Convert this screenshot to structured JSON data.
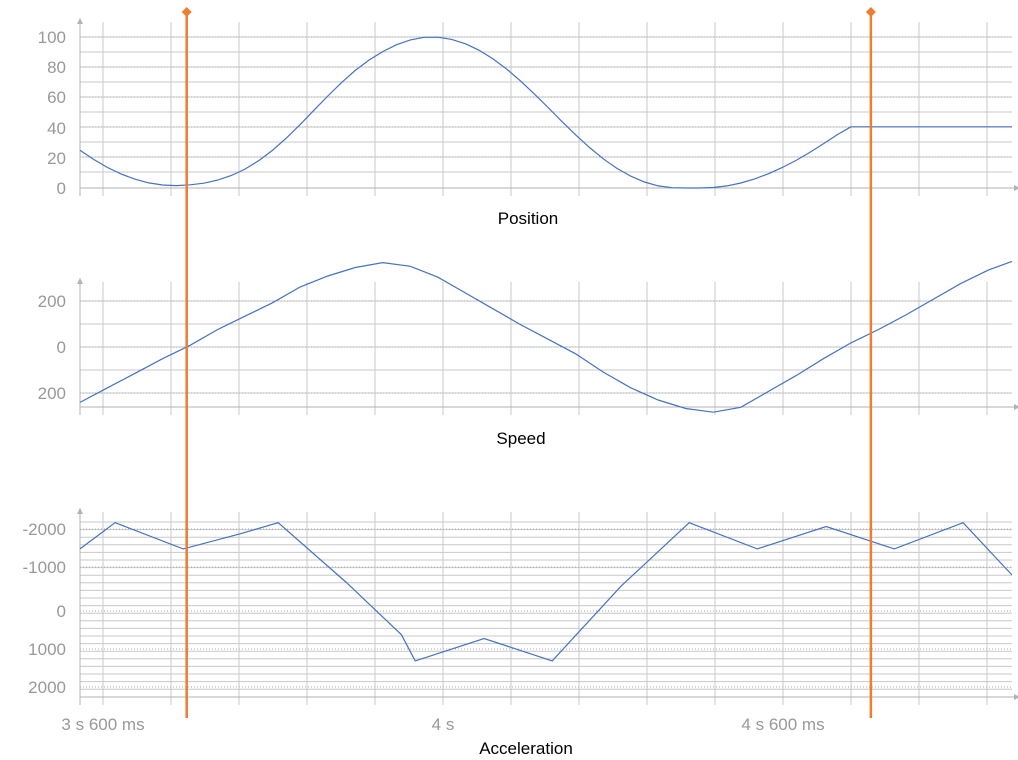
{
  "colors": {
    "series": "#4472c4",
    "cursor": "#ed7d31",
    "grid": "#c8c8c8",
    "axis": "#b3b3b3",
    "tick_text": "#999999",
    "title_text": "#000000"
  },
  "x_axis": {
    "type": "time",
    "unit": "ms",
    "range": [
      3522,
      4876
    ],
    "tick_labels": [
      {
        "t": 3600,
        "label": "3 s 600 ms"
      },
      {
        "t": 4000,
        "label": "4 s"
      },
      {
        "t": 4400,
        "label": "4 s 600 ms"
      }
    ]
  },
  "cursors": [
    {
      "t": 3677
    },
    {
      "t": 4671
    }
  ],
  "chart_data": [
    {
      "type": "line",
      "title": "Position",
      "ylim": [
        0,
        100
      ],
      "y_ticks": [
        "0",
        "20",
        "40",
        "60",
        "80",
        "100"
      ],
      "grid": true,
      "series": [
        {
          "x": [
            3522,
            3542,
            3562,
            3582,
            3602,
            3622,
            3642,
            3662,
            3682,
            3702,
            3722,
            3742,
            3762,
            3782,
            3802,
            3822,
            3842,
            3862,
            3882,
            3902,
            3922,
            3942,
            3962,
            3982,
            4002,
            4022,
            4042,
            4062,
            4082,
            4102,
            4122,
            4142,
            4162,
            4182,
            4202,
            4222,
            4242,
            4262,
            4282,
            4302,
            4322,
            4342,
            4362,
            4382,
            4402,
            4422,
            4442,
            4462,
            4482,
            4502,
            4522,
            4542,
            4562,
            4582,
            4602,
            4622,
            4642,
            4662,
            4682,
            4702,
            4722,
            4742,
            4762,
            4782,
            4802,
            4822,
            4842,
            4862,
            4876
          ],
          "y": [
            25,
            18.9,
            13.6,
            9.2,
            5.8,
            3.4,
            2,
            1.6,
            2.1,
            3.2,
            5.2,
            8.3,
            12.6,
            18.2,
            25.1,
            33.2,
            42.1,
            51.5,
            60.9,
            69.8,
            77.9,
            84.8,
            90.4,
            94.9,
            98.1,
            99.8,
            99.9,
            98.4,
            95.5,
            91.2,
            85.5,
            78.7,
            70.9,
            62.3,
            53.3,
            44.1,
            35.2,
            26.9,
            19.4,
            13,
            7.9,
            4,
            1.4,
            0.2,
            0,
            0,
            0.3,
            1.4,
            3.3,
            6,
            9.4,
            13.5,
            18.2,
            23.5,
            29.3,
            35.3,
            40.5,
            40.5,
            40.5,
            40.5,
            40.5,
            40.5,
            40.5,
            40.5,
            40.5,
            40.5,
            40.5,
            40.5,
            40.5
          ]
        }
      ]
    },
    {
      "type": "line",
      "title": "Speed",
      "ylim": [
        -250,
        260
      ],
      "y_ticks": [
        "200",
        "0",
        "200"
      ],
      "grid": true,
      "series": [
        {
          "x": [
            3522,
            3562,
            3602,
            3642,
            3682,
            3722,
            3762,
            3802,
            3842,
            3882,
            3922,
            3962,
            4002,
            4042,
            4082,
            4122,
            4162,
            4202,
            4242,
            4282,
            4322,
            4362,
            4402,
            4442,
            4482,
            4522,
            4562,
            4602,
            4642,
            4682,
            4722,
            4762,
            4802,
            4842,
            4876
          ],
          "y": [
            -260,
            -200,
            -140,
            -80,
            -25,
            40,
            95,
            150,
            215,
            260,
            295,
            315,
            300,
            255,
            190,
            125,
            60,
            0,
            -60,
            -135,
            -200,
            -250,
            -285,
            -300,
            -280,
            -215,
            -150,
            -80,
            -15,
            40,
            100,
            165,
            230,
            285,
            320
          ]
        }
      ]
    },
    {
      "type": "line",
      "title": "Acceleration",
      "ylim": [
        -2500,
        2400
      ],
      "y_ticks": [
        "2000",
        "1000",
        "0",
        "-1000",
        "-2000"
      ],
      "grid": true,
      "series": [
        {
          "x": [
            3522,
            3573,
            3672,
            3754,
            3810,
            3909,
            3989,
            4009,
            4109,
            4208,
            4308,
            4407,
            4506,
            4606,
            4705,
            4805,
            4876
          ],
          "y": [
            1600,
            2300,
            1600,
            2000,
            2300,
            700,
            -700,
            -1400,
            -800,
            -1400,
            600,
            2300,
            1600,
            2200,
            1600,
            2300,
            900
          ]
        }
      ]
    }
  ]
}
